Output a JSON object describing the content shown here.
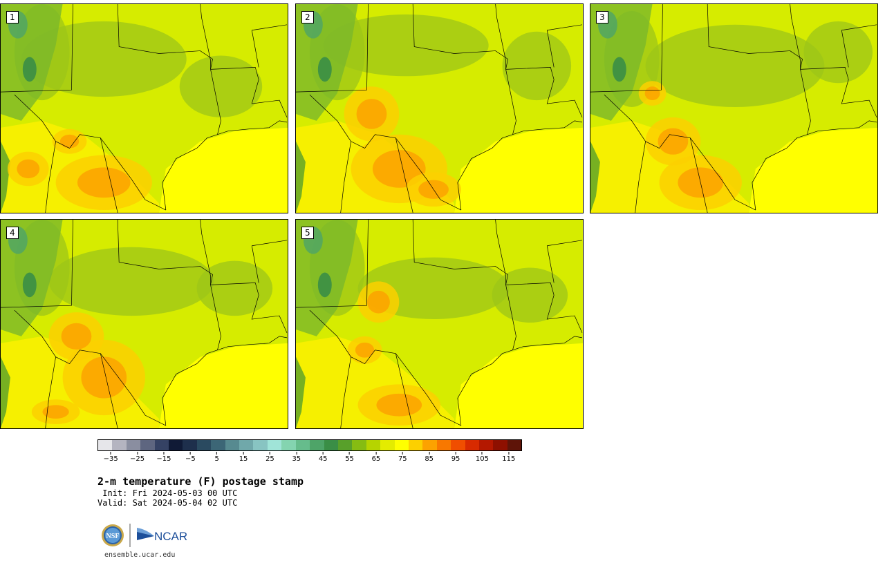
{
  "panels": [
    {
      "label": "1"
    },
    {
      "label": "2"
    },
    {
      "label": "3"
    },
    {
      "label": "4"
    },
    {
      "label": "5"
    }
  ],
  "colorbar": {
    "colors": [
      "#e6e6ea",
      "#b4b4c0",
      "#8a8ea0",
      "#5e6680",
      "#354264",
      "#101a36",
      "#1e2f4c",
      "#2a4a60",
      "#3c6676",
      "#578a90",
      "#70a8aa",
      "#88c4c2",
      "#a0e4d8",
      "#84d4b0",
      "#66bc8c",
      "#4ea468",
      "#3a8e46",
      "#58a02a",
      "#86bc12",
      "#b6d400",
      "#e4ec00",
      "#ffff00",
      "#fcd000",
      "#fca200",
      "#f87800",
      "#f04e00",
      "#d82a00",
      "#b41800",
      "#8e1000",
      "#5e1408"
    ],
    "tick_labels": [
      "−35",
      "−25",
      "−15",
      "−5",
      "5",
      "15",
      "25",
      "35",
      "45",
      "55",
      "65",
      "75",
      "85",
      "95",
      "105",
      "115"
    ],
    "min": -40,
    "max": 120,
    "tick_values": [
      -35,
      -25,
      -15,
      -5,
      5,
      15,
      25,
      35,
      45,
      55,
      65,
      75,
      85,
      95,
      105,
      115
    ]
  },
  "title": "2-m temperature (F) postage stamp",
  "init": " Init: Fri 2024-05-03 00 UTC",
  "valid": "Valid: Sat 2024-05-04 02 UTC",
  "logo_nsf": "NSF",
  "logo_ncar": "NCAR",
  "url": "ensemble.ucar.edu"
}
